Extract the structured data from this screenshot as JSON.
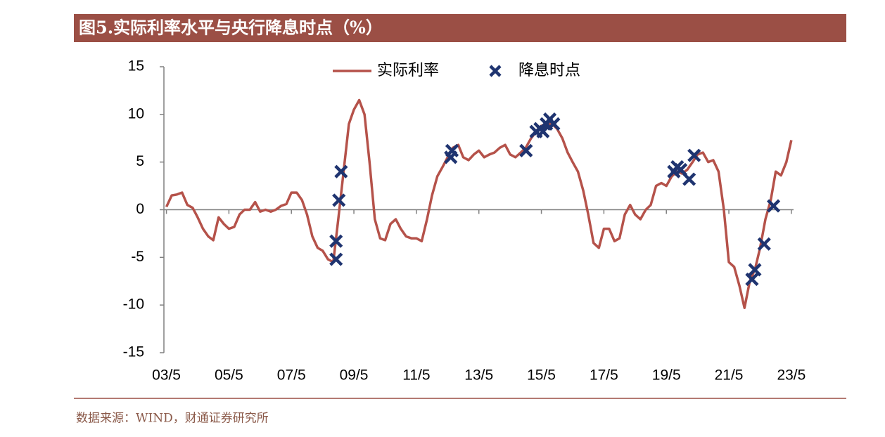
{
  "chart_data": {
    "type": "line",
    "title": "图5.实际利率水平与央行降息时点（%）",
    "source": "数据来源：WIND，财通证券研究所",
    "xlim": [
      2003.25,
      2023.4
    ],
    "xticks": [
      {
        "value": 2003.33,
        "label": "03/5"
      },
      {
        "value": 2005.33,
        "label": "05/5"
      },
      {
        "value": 2007.33,
        "label": "07/5"
      },
      {
        "value": 2009.33,
        "label": "09/5"
      },
      {
        "value": 2011.33,
        "label": "11/5"
      },
      {
        "value": 2013.33,
        "label": "13/5"
      },
      {
        "value": 2015.33,
        "label": "15/5"
      },
      {
        "value": 2017.33,
        "label": "17/5"
      },
      {
        "value": 2019.33,
        "label": "19/5"
      },
      {
        "value": 2021.33,
        "label": "21/5"
      },
      {
        "value": 2023.33,
        "label": "23/5"
      }
    ],
    "ylim": [
      -15,
      15
    ],
    "yticks": [
      -15,
      -10,
      -5,
      0,
      5,
      10,
      15
    ],
    "legend": "top",
    "series": [
      {
        "name": "实际利率",
        "type": "line",
        "color": "#b5524a",
        "x": [
          2003.33,
          2003.5,
          2003.67,
          2003.83,
          2004.0,
          2004.17,
          2004.33,
          2004.5,
          2004.67,
          2004.83,
          2005.0,
          2005.17,
          2005.33,
          2005.5,
          2005.67,
          2005.83,
          2006.0,
          2006.17,
          2006.33,
          2006.5,
          2006.67,
          2006.83,
          2007.0,
          2007.17,
          2007.33,
          2007.5,
          2007.67,
          2007.83,
          2008.0,
          2008.17,
          2008.33,
          2008.5,
          2008.67,
          2008.83,
          2009.0,
          2009.17,
          2009.33,
          2009.5,
          2009.67,
          2009.83,
          2010.0,
          2010.17,
          2010.33,
          2010.5,
          2010.67,
          2010.83,
          2011.0,
          2011.17,
          2011.33,
          2011.5,
          2011.67,
          2011.83,
          2012.0,
          2012.17,
          2012.33,
          2012.5,
          2012.67,
          2012.83,
          2013.0,
          2013.17,
          2013.33,
          2013.5,
          2013.67,
          2013.83,
          2014.0,
          2014.17,
          2014.33,
          2014.5,
          2014.67,
          2014.83,
          2015.0,
          2015.17,
          2015.33,
          2015.5,
          2015.67,
          2015.83,
          2016.0,
          2016.17,
          2016.33,
          2016.5,
          2016.67,
          2016.83,
          2017.0,
          2017.17,
          2017.33,
          2017.5,
          2017.67,
          2017.83,
          2018.0,
          2018.17,
          2018.33,
          2018.5,
          2018.67,
          2018.83,
          2019.0,
          2019.17,
          2019.33,
          2019.5,
          2019.67,
          2019.83,
          2020.0,
          2020.17,
          2020.33,
          2020.5,
          2020.67,
          2020.83,
          2021.0,
          2021.17,
          2021.33,
          2021.5,
          2021.67,
          2021.83,
          2022.0,
          2022.17,
          2022.33,
          2022.5,
          2022.67,
          2022.83,
          2023.0,
          2023.17,
          2023.33
        ],
        "values": [
          0.3,
          1.5,
          1.6,
          1.8,
          0.5,
          0.2,
          -0.8,
          -2,
          -2.8,
          -3.2,
          -0.8,
          -1.5,
          -2,
          -1.8,
          -0.5,
          0,
          0,
          0.8,
          -0.2,
          0,
          -0.2,
          0,
          0.4,
          0.6,
          1.8,
          1.8,
          1,
          -0.5,
          -2.8,
          -4,
          -4.3,
          -5.2,
          -5.5,
          -1,
          4,
          9,
          10.5,
          11.5,
          10,
          5,
          -1,
          -3,
          -3.2,
          -1.5,
          -1,
          -2,
          -2.8,
          -3,
          -3,
          -3.3,
          -1,
          1.5,
          3.5,
          4.5,
          5.5,
          6.5,
          6.8,
          5.5,
          5.2,
          5.8,
          6.2,
          5.5,
          5.8,
          6,
          6.5,
          6.8,
          5.8,
          5.5,
          6,
          6.5,
          7.5,
          8.2,
          8.8,
          9,
          9,
          8.5,
          7.5,
          6,
          5,
          4,
          2,
          -0.5,
          -3.5,
          -4,
          -2,
          -2,
          -3.3,
          -3,
          -0.5,
          0.5,
          -0.5,
          -1,
          0,
          0.5,
          2.5,
          2.8,
          2.5,
          3.5,
          4,
          3.8,
          4.2,
          5,
          5.8,
          6,
          5,
          5.2,
          4,
          0,
          -5.5,
          -6,
          -8,
          -10.3,
          -7.5,
          -6.2,
          -4,
          -1,
          1,
          4,
          3.6,
          5,
          7.3
        ]
      },
      {
        "name": "降息时点",
        "type": "scatter",
        "color": "#1f3470",
        "x": [
          2008.76,
          2008.76,
          2008.85,
          2008.92,
          2012.43,
          2012.47,
          2014.84,
          2015.16,
          2015.29,
          2015.38,
          2015.49,
          2015.6,
          2015.72,
          2019.57,
          2019.68,
          2019.79,
          2020.06,
          2020.22,
          2022.07,
          2022.16,
          2022.46,
          2022.76
        ],
        "values": [
          -5.2,
          -3.3,
          1.0,
          4.0,
          5.5,
          6.2,
          6.2,
          8.2,
          8.5,
          8.2,
          9.0,
          9.5,
          9.0,
          4.0,
          4.5,
          4.2,
          3.2,
          5.7,
          -7.3,
          -6.3,
          -3.6,
          0.4
        ]
      }
    ]
  }
}
